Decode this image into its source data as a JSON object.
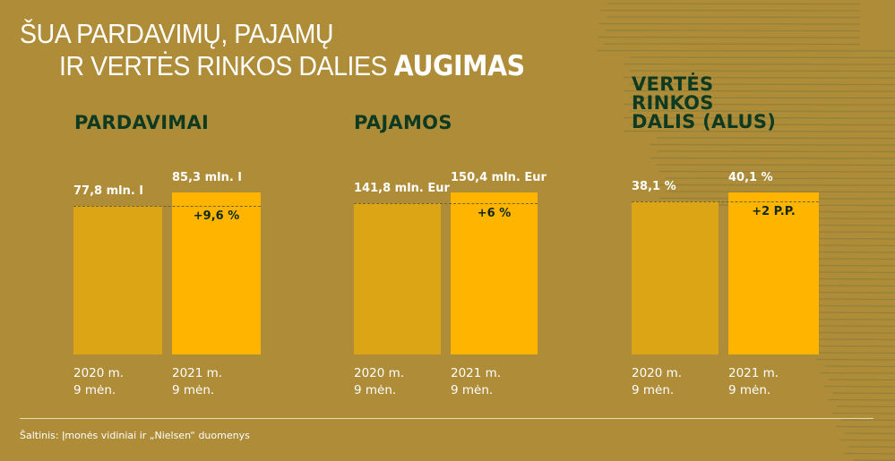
{
  "title": {
    "line1": "ŠUA PARDAVIMŲ, PAJAMŲ",
    "line2_regular": "IR VERTĖS RINKOS DALIES",
    "line2_bold": "AUGIMAS"
  },
  "colors": {
    "background": "#ae8c38",
    "bar_2020": "#dca516",
    "bar_2021": "#ffb400",
    "heading": "#0f3a22"
  },
  "chart_data": [
    {
      "type": "bar",
      "title": "PARDAVIMAI",
      "categories": [
        "2020 m. 9 mėn.",
        "2021 m. 9 mėn."
      ],
      "values": [
        77.8,
        85.3
      ],
      "unit": "mln. l",
      "value_labels": [
        "77,8 mln. l",
        "85,3 mln. l"
      ],
      "change": "+9,6 %"
    },
    {
      "type": "bar",
      "title": "PAJAMOS",
      "categories": [
        "2020 m. 9 mėn.",
        "2021 m. 9 mėn."
      ],
      "values": [
        141.8,
        150.4
      ],
      "unit": "mln. Eur",
      "value_labels": [
        "141,8 mln. Eur",
        "150,4 mln. Eur"
      ],
      "change": "+6 %"
    },
    {
      "type": "bar",
      "title": "VERTĖS RINKOS DALIS (ALUS)",
      "title_lines": [
        "VERTĖS",
        "RINKOS",
        "DALIS (ALUS)"
      ],
      "categories": [
        "2020 m. 9 mėn.",
        "2021 m. 9 mėn."
      ],
      "values": [
        38.1,
        40.1
      ],
      "unit": "%",
      "value_labels": [
        "38,1 %",
        "40,1 %"
      ],
      "change": "+2 P.P."
    }
  ],
  "year_labels": {
    "y2020_line1": "2020 m.",
    "y2021_line1": "2021 m.",
    "line2": "9 mėn."
  },
  "source": "Šaltinis: Įmonės vidiniai ir „Nielsen“ duomenys"
}
